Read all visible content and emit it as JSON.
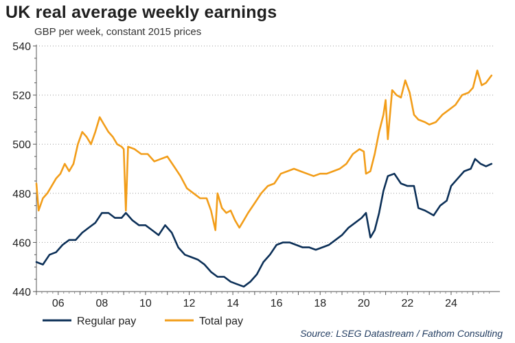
{
  "chart_data": {
    "type": "line",
    "title": "UK real average weekly earnings",
    "subtitle": "GBP per week, constant 2015 prices",
    "xlabel": "",
    "ylabel": "GBP per week",
    "xlim": [
      2005.0,
      2025.92
    ],
    "ylim": [
      440,
      540
    ],
    "y_ticks": [
      440,
      460,
      480,
      500,
      520,
      540
    ],
    "x_ticks": [
      {
        "value": 2006,
        "label": "06"
      },
      {
        "value": 2008,
        "label": "08"
      },
      {
        "value": 2010,
        "label": "10"
      },
      {
        "value": 2012,
        "label": "12"
      },
      {
        "value": 2014,
        "label": "14"
      },
      {
        "value": 2016,
        "label": "16"
      },
      {
        "value": 2018,
        "label": "18"
      },
      {
        "value": 2020,
        "label": "20"
      },
      {
        "value": 2022,
        "label": "22"
      },
      {
        "value": 2024,
        "label": "24"
      }
    ],
    "series": [
      {
        "name": "Regular pay",
        "color": "#0b2f57",
        "points": [
          [
            2005.0,
            452
          ],
          [
            2005.3,
            451
          ],
          [
            2005.6,
            455
          ],
          [
            2005.9,
            456
          ],
          [
            2006.2,
            459
          ],
          [
            2006.5,
            461
          ],
          [
            2006.8,
            461
          ],
          [
            2007.1,
            464
          ],
          [
            2007.4,
            466
          ],
          [
            2007.7,
            468
          ],
          [
            2008.0,
            472
          ],
          [
            2008.3,
            472
          ],
          [
            2008.6,
            470
          ],
          [
            2008.9,
            470
          ],
          [
            2009.1,
            472
          ],
          [
            2009.4,
            469
          ],
          [
            2009.7,
            467
          ],
          [
            2010.0,
            467
          ],
          [
            2010.3,
            465
          ],
          [
            2010.6,
            463
          ],
          [
            2010.9,
            467
          ],
          [
            2011.2,
            464
          ],
          [
            2011.5,
            458
          ],
          [
            2011.8,
            455
          ],
          [
            2012.1,
            454
          ],
          [
            2012.4,
            453
          ],
          [
            2012.7,
            451
          ],
          [
            2013.0,
            448
          ],
          [
            2013.3,
            446
          ],
          [
            2013.6,
            446
          ],
          [
            2013.9,
            444
          ],
          [
            2014.2,
            443
          ],
          [
            2014.5,
            442
          ],
          [
            2014.8,
            444
          ],
          [
            2015.1,
            447
          ],
          [
            2015.4,
            452
          ],
          [
            2015.7,
            455
          ],
          [
            2016.0,
            459
          ],
          [
            2016.3,
            460
          ],
          [
            2016.6,
            460
          ],
          [
            2016.9,
            459
          ],
          [
            2017.2,
            458
          ],
          [
            2017.5,
            458
          ],
          [
            2017.8,
            457
          ],
          [
            2018.1,
            458
          ],
          [
            2018.4,
            459
          ],
          [
            2018.7,
            461
          ],
          [
            2019.0,
            463
          ],
          [
            2019.3,
            466
          ],
          [
            2019.6,
            468
          ],
          [
            2019.9,
            470
          ],
          [
            2020.1,
            472
          ],
          [
            2020.3,
            462
          ],
          [
            2020.5,
            465
          ],
          [
            2020.7,
            472
          ],
          [
            2020.9,
            481
          ],
          [
            2021.1,
            487
          ],
          [
            2021.4,
            488
          ],
          [
            2021.7,
            484
          ],
          [
            2022.0,
            483
          ],
          [
            2022.3,
            483
          ],
          [
            2022.5,
            474
          ],
          [
            2022.8,
            473
          ],
          [
            2023.0,
            472
          ],
          [
            2023.2,
            471
          ],
          [
            2023.5,
            475
          ],
          [
            2023.8,
            477
          ],
          [
            2024.0,
            483
          ],
          [
            2024.3,
            486
          ],
          [
            2024.6,
            489
          ],
          [
            2024.9,
            490
          ],
          [
            2025.1,
            494
          ],
          [
            2025.35,
            492
          ],
          [
            2025.6,
            491
          ],
          [
            2025.85,
            492
          ]
        ]
      },
      {
        "name": "Total pay",
        "color": "#f29d19",
        "points": [
          [
            2005.0,
            484
          ],
          [
            2005.1,
            473
          ],
          [
            2005.3,
            478
          ],
          [
            2005.5,
            480
          ],
          [
            2005.7,
            483
          ],
          [
            2005.9,
            486
          ],
          [
            2006.1,
            488
          ],
          [
            2006.3,
            492
          ],
          [
            2006.5,
            489
          ],
          [
            2006.7,
            492
          ],
          [
            2006.9,
            500
          ],
          [
            2007.1,
            505
          ],
          [
            2007.3,
            503
          ],
          [
            2007.5,
            500
          ],
          [
            2007.7,
            505
          ],
          [
            2007.9,
            511
          ],
          [
            2008.1,
            508
          ],
          [
            2008.3,
            505
          ],
          [
            2008.5,
            503
          ],
          [
            2008.7,
            500
          ],
          [
            2008.9,
            499
          ],
          [
            2009.0,
            498
          ],
          [
            2009.1,
            473
          ],
          [
            2009.2,
            499
          ],
          [
            2009.5,
            498
          ],
          [
            2009.8,
            496
          ],
          [
            2010.1,
            496
          ],
          [
            2010.4,
            493
          ],
          [
            2010.7,
            494
          ],
          [
            2011.0,
            495
          ],
          [
            2011.3,
            491
          ],
          [
            2011.6,
            487
          ],
          [
            2011.9,
            482
          ],
          [
            2012.2,
            480
          ],
          [
            2012.5,
            478
          ],
          [
            2012.8,
            478
          ],
          [
            2013.0,
            473
          ],
          [
            2013.2,
            465
          ],
          [
            2013.3,
            480
          ],
          [
            2013.5,
            474
          ],
          [
            2013.7,
            472
          ],
          [
            2013.9,
            473
          ],
          [
            2014.1,
            469
          ],
          [
            2014.3,
            466
          ],
          [
            2014.5,
            469
          ],
          [
            2014.7,
            472
          ],
          [
            2015.0,
            476
          ],
          [
            2015.3,
            480
          ],
          [
            2015.6,
            483
          ],
          [
            2015.9,
            484
          ],
          [
            2016.2,
            488
          ],
          [
            2016.5,
            489
          ],
          [
            2016.8,
            490
          ],
          [
            2017.1,
            489
          ],
          [
            2017.4,
            488
          ],
          [
            2017.7,
            487
          ],
          [
            2018.0,
            488
          ],
          [
            2018.3,
            488
          ],
          [
            2018.6,
            489
          ],
          [
            2018.9,
            490
          ],
          [
            2019.2,
            492
          ],
          [
            2019.5,
            496
          ],
          [
            2019.8,
            498
          ],
          [
            2020.0,
            497
          ],
          [
            2020.1,
            488
          ],
          [
            2020.3,
            489
          ],
          [
            2020.5,
            496
          ],
          [
            2020.7,
            505
          ],
          [
            2020.9,
            512
          ],
          [
            2021.0,
            518
          ],
          [
            2021.1,
            502
          ],
          [
            2021.3,
            522
          ],
          [
            2021.5,
            520
          ],
          [
            2021.7,
            519
          ],
          [
            2021.9,
            526
          ],
          [
            2022.1,
            521
          ],
          [
            2022.3,
            512
          ],
          [
            2022.5,
            510
          ],
          [
            2022.8,
            509
          ],
          [
            2023.0,
            508
          ],
          [
            2023.3,
            509
          ],
          [
            2023.6,
            512
          ],
          [
            2023.9,
            514
          ],
          [
            2024.2,
            516
          ],
          [
            2024.5,
            520
          ],
          [
            2024.8,
            521
          ],
          [
            2025.0,
            523
          ],
          [
            2025.2,
            530
          ],
          [
            2025.4,
            524
          ],
          [
            2025.6,
            525
          ],
          [
            2025.85,
            528
          ]
        ]
      }
    ],
    "legend": [
      "Regular pay",
      "Total pay"
    ],
    "legend_position": "bottom-left",
    "source": "Source: LSEG Datastream / Fathom Consulting"
  }
}
